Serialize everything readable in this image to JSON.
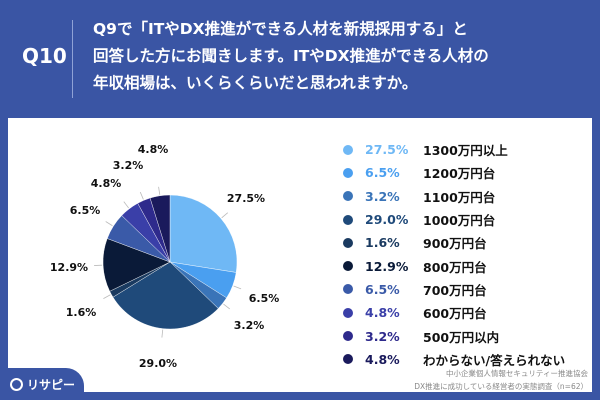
{
  "header": {
    "question_no": "Q10",
    "question_lines": [
      "Q9で「ITやDX推進ができる人材を新規採用する」と",
      "回答した方にお聞きします。ITやDX推進ができる人材の",
      "年収相場は、いくらくらいだと思われますか。"
    ]
  },
  "chart_data": {
    "type": "pie",
    "title": "ITやDX推進ができる人材の年収相場",
    "categories": [
      "1300万円以上",
      "1200万円台",
      "1100万円台",
      "1000万円台",
      "900万円台",
      "800万円台",
      "700万円台",
      "600万円台",
      "500万円以内",
      "わからない/答えられない"
    ],
    "values": [
      27.5,
      6.5,
      3.2,
      29.0,
      1.6,
      12.9,
      6.5,
      4.8,
      3.2,
      4.8
    ],
    "labels": [
      "27.5%",
      "6.5%",
      "3.2%",
      "29.0%",
      "1.6%",
      "12.9%",
      "6.5%",
      "4.8%",
      "3.2%",
      "4.8%"
    ],
    "colors": [
      "#6fb8f5",
      "#4a9ff0",
      "#3a74b8",
      "#1f4a7a",
      "#1a3a60",
      "#0a1a38",
      "#3a5aa8",
      "#3a3fa8",
      "#2e2a8c",
      "#1a1a5c"
    ],
    "legend_placement": "right"
  },
  "source": {
    "line1": "中小企業個人情報セキュリティー推進協会",
    "line2": "DX推進に成功している経営者の実態調査（n=62）"
  },
  "logo": "リサピー"
}
